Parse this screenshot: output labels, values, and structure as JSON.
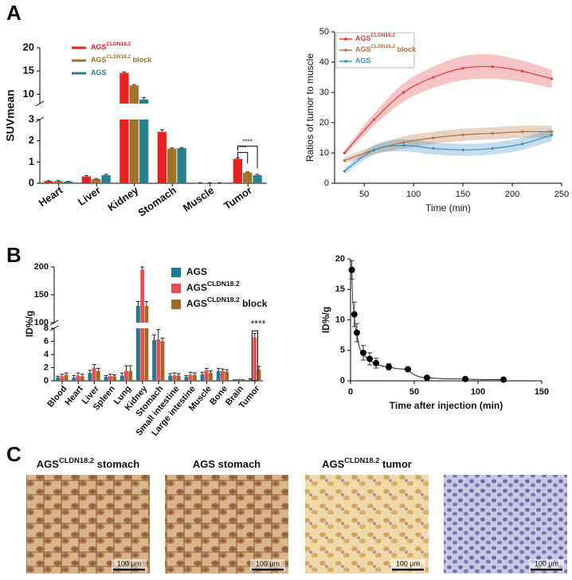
{
  "panel_labels": [
    "A",
    "B",
    "C"
  ],
  "chart_data": [
    {
      "type": "bar",
      "ylabel": "SUVmean",
      "categories": [
        "Heart",
        "Liver",
        "Kidney",
        "Stomach",
        "Muscle",
        "Tumor"
      ],
      "series": [
        {
          "name": "AGS",
          "name_sup": "CLDN18.2",
          "color": "#e8211e",
          "values": [
            0.1,
            0.32,
            14.6,
            2.42,
            0.02,
            1.15
          ],
          "errors": [
            0.02,
            0.04,
            0.2,
            0.1,
            0.005,
            0.05
          ]
        },
        {
          "name": "AGS",
          "name_sup": "CLDN18.2",
          "name_suffix": " block",
          "color": "#a0722a",
          "values": [
            0.1,
            0.2,
            11.9,
            1.63,
            0.02,
            0.5
          ],
          "errors": [
            0.02,
            0.02,
            0.15,
            0.03,
            0.005,
            0.03
          ]
        },
        {
          "name": "AGS",
          "color": "#2a7f8e",
          "values": [
            0.08,
            0.38,
            8.9,
            1.65,
            0.02,
            0.38
          ],
          "errors": [
            0.01,
            0.04,
            0.4,
            0.03,
            0.005,
            0.04
          ]
        }
      ],
      "ylim": [
        0,
        20
      ],
      "axis_break": [
        3,
        8
      ],
      "yticks": [
        0,
        1,
        2,
        3,
        10,
        15,
        20
      ],
      "annotations": [
        "***",
        "****"
      ]
    },
    {
      "type": "line",
      "xlabel": "Time (min)",
      "ylabel": "Ratios of tumor to muscle",
      "x": [
        30,
        60,
        90,
        120,
        150,
        180,
        210,
        240
      ],
      "series": [
        {
          "name": "AGS",
          "name_sup": "CLDN18.2",
          "color": "#e03c3c",
          "values": [
            10,
            21,
            30,
            35,
            38,
            38.5,
            37,
            34.5
          ],
          "errors": [
            1,
            2,
            3,
            3.5,
            4,
            4,
            3.5,
            3
          ]
        },
        {
          "name": "AGS",
          "name_sup": "CLDN18.2",
          "name_suffix": " block",
          "color": "#b0703a",
          "values": [
            7.5,
            11,
            13.5,
            15,
            16,
            16.5,
            17,
            17
          ],
          "errors": [
            1,
            1.5,
            2,
            2,
            2,
            2,
            2,
            2
          ]
        },
        {
          "name": "AGS",
          "color": "#3a8fc0",
          "values": [
            4,
            11,
            12.5,
            11.5,
            11,
            11.5,
            13,
            16
          ],
          "errors": [
            1,
            1.5,
            2,
            2,
            2,
            2,
            2,
            2
          ]
        }
      ],
      "xlim": [
        20,
        250
      ],
      "xticks": [
        50,
        100,
        150,
        200,
        250
      ],
      "ylim": [
        0,
        50
      ],
      "yticks": [
        0,
        10,
        20,
        30,
        40,
        50
      ]
    },
    {
      "type": "bar",
      "ylabel": "ID%/g",
      "categories": [
        "Blood",
        "Heart",
        "Liver",
        "Spleen",
        "Lung",
        "Kidney",
        "Stomach",
        "Small intestine",
        "Large intestine",
        "Muscle",
        "Bone",
        "Brain",
        "Tumor"
      ],
      "series": [
        {
          "name": "AGS",
          "color": "#1f7a96",
          "values": [
            0.5,
            0.5,
            1.2,
            0.6,
            0.8,
            130,
            6.2,
            0.8,
            0.6,
            1.0,
            1.5,
            0.1,
            0.2
          ],
          "errors": [
            0.2,
            0.3,
            0.4,
            0.2,
            0.4,
            8,
            0.8,
            0.3,
            0.2,
            0.3,
            0.4,
            0.05,
            0.1
          ]
        },
        {
          "name": "AGS",
          "name_sup": "CLDN18.2",
          "color": "#e85050",
          "values": [
            0.7,
            0.8,
            2.0,
            0.7,
            1.5,
            195,
            6.3,
            0.8,
            0.9,
            1.6,
            1.5,
            0.1,
            6.6
          ],
          "errors": [
            0.3,
            0.4,
            0.5,
            0.3,
            0.8,
            5,
            1.5,
            0.4,
            0.4,
            0.3,
            0.3,
            0.05,
            0.6
          ]
        },
        {
          "name": "AGS",
          "name_sup": "CLDN18.2",
          "name_suffix": " block",
          "color": "#9c6a28",
          "values": [
            0.9,
            0.7,
            1.5,
            0.7,
            1.5,
            130,
            6.0,
            0.8,
            0.9,
            1.2,
            1.4,
            0.1,
            1.7
          ],
          "errors": [
            0.3,
            0.3,
            0.4,
            0.2,
            0.8,
            8,
            0.5,
            0.3,
            0.3,
            0.3,
            0.3,
            0.05,
            0.5
          ]
        }
      ],
      "ylim": [
        0,
        200
      ],
      "axis_break": [
        8,
        100
      ],
      "yticks": [
        0,
        2,
        4,
        6,
        8,
        100,
        150,
        200
      ],
      "annotations": [
        "****"
      ]
    },
    {
      "type": "scatter",
      "xlabel": "Time after injection (min)",
      "ylabel": "ID%/g",
      "x": [
        1,
        3,
        5,
        10,
        15,
        20,
        30,
        45,
        60,
        90,
        120
      ],
      "values": [
        18.2,
        10.9,
        7.9,
        4.6,
        3.6,
        2.9,
        2.3,
        1.9,
        0.5,
        0.3,
        0.2
      ],
      "errors": [
        1.5,
        2,
        1.5,
        1.2,
        1,
        0.8,
        0.5,
        0.3,
        0.2,
        0.1,
        0.1
      ],
      "color": "#000000",
      "xlim": [
        0,
        150
      ],
      "xticks": [
        0,
        50,
        100,
        150
      ],
      "ylim": [
        0,
        20
      ],
      "yticks": [
        0,
        5,
        10,
        15,
        20
      ]
    }
  ],
  "images": [
    {
      "caption": "AGS",
      "caption_sup": "CLDN18.2",
      "caption_suffix": " stomach",
      "scale_bar": "100 μm"
    },
    {
      "caption": "AGS stomach",
      "scale_bar": "100 μm"
    },
    {
      "caption": "AGS",
      "caption_sup": "CLDN18.2",
      "caption_suffix": " tumor",
      "scale_bar": "100 μm"
    },
    {
      "scale_bar": "100 μm"
    }
  ]
}
